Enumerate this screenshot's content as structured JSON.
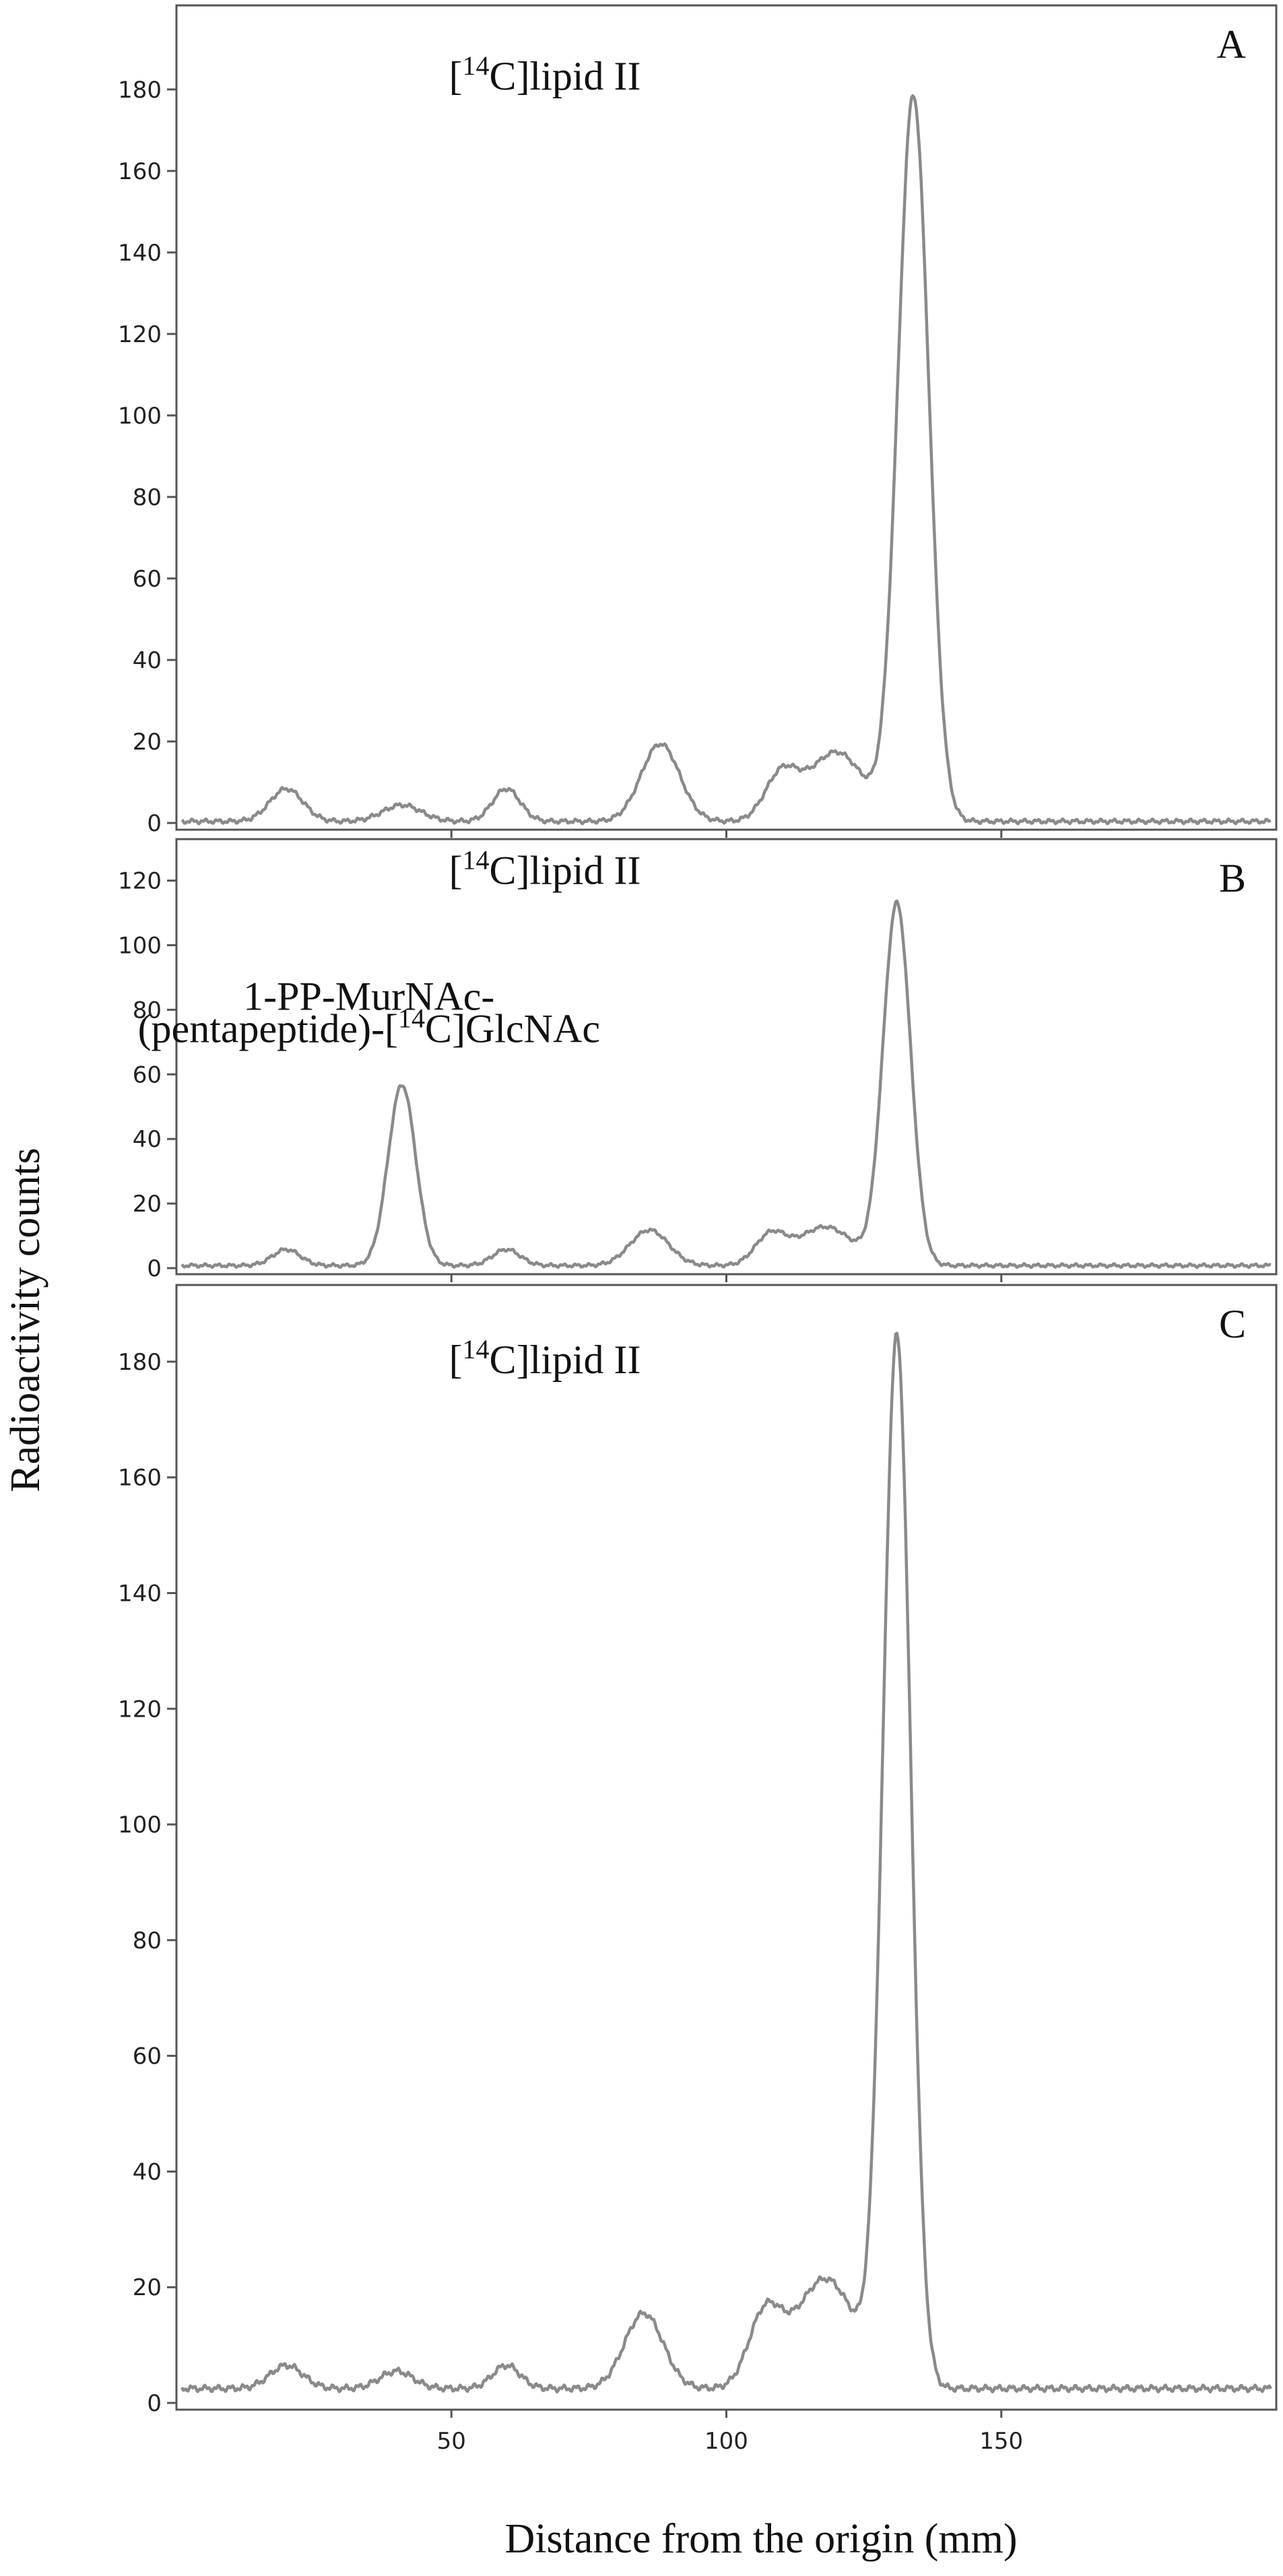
{
  "chart_data": {
    "type": "line",
    "ylabel": "Radioactivity counts",
    "xlabel": "Distance from the origin (mm)",
    "xlim": [
      0,
      200
    ],
    "x_ticks": [
      50,
      100,
      150
    ],
    "legend": "none",
    "grid": false,
    "line_color": "#8a8a8a",
    "panels": [
      {
        "letter": "A",
        "ylim": [
          0,
          196
        ],
        "y_ticks": [
          0,
          20,
          40,
          60,
          80,
          100,
          120,
          140,
          160,
          180
        ],
        "baseline": 0.4,
        "peaks": [
          {
            "x": 20,
            "height": 8,
            "width": 3
          },
          {
            "x": 41,
            "height": 4,
            "width": 3.5
          },
          {
            "x": 60,
            "height": 8,
            "width": 2.5
          },
          {
            "x": 88,
            "height": 19,
            "width": 3.5
          },
          {
            "x": 110,
            "height": 11,
            "width": 3
          },
          {
            "x": 120,
            "height": 17,
            "width": 5
          },
          {
            "x": 134,
            "height": 178,
            "width": 2.8
          }
        ],
        "annotations": [
          {
            "pre": "[",
            "sup": "14",
            "post": "C]lipid II",
            "x": 67,
            "y": 180
          }
        ]
      },
      {
        "letter": "B",
        "ylim": [
          0,
          127
        ],
        "y_ticks": [
          0,
          20,
          40,
          60,
          80,
          100,
          120
        ],
        "baseline": 0.8,
        "peaks": [
          {
            "x": 20,
            "height": 5,
            "width": 2.5
          },
          {
            "x": 41,
            "height": 56,
            "width": 2.5
          },
          {
            "x": 60,
            "height": 5,
            "width": 2.5
          },
          {
            "x": 86,
            "height": 11,
            "width": 3.5
          },
          {
            "x": 108,
            "height": 9,
            "width": 2.8
          },
          {
            "x": 118,
            "height": 12,
            "width": 5
          },
          {
            "x": 131,
            "height": 112,
            "width": 2.5
          }
        ],
        "annotations": [
          {
            "pre": "[",
            "sup": "14",
            "post": "C]lipid II",
            "x": 67,
            "y": 119
          },
          {
            "pre": "1-PP-MurNAc-",
            "sup": "",
            "post": "",
            "x": 35,
            "y": 80
          },
          {
            "pre": "(pentapeptide)-[",
            "sup": "14",
            "post": "C]GlcNAc",
            "x": 35,
            "y": 70
          }
        ]
      },
      {
        "letter": "C",
        "ylim": [
          0,
          190
        ],
        "y_ticks": [
          0,
          20,
          40,
          60,
          80,
          100,
          120,
          140,
          160,
          180
        ],
        "baseline": 2.5,
        "peaks": [
          {
            "x": 20,
            "height": 4,
            "width": 3
          },
          {
            "x": 40,
            "height": 3,
            "width": 3
          },
          {
            "x": 60,
            "height": 4,
            "width": 2.5
          },
          {
            "x": 85,
            "height": 13,
            "width": 3.5
          },
          {
            "x": 107,
            "height": 12,
            "width": 3
          },
          {
            "x": 118,
            "height": 19,
            "width": 5.5
          },
          {
            "x": 131,
            "height": 181,
            "width": 2.5
          }
        ],
        "annotations": [
          {
            "pre": "[",
            "sup": "14",
            "post": "C]lipid II",
            "x": 67,
            "y": 178
          }
        ]
      }
    ]
  }
}
